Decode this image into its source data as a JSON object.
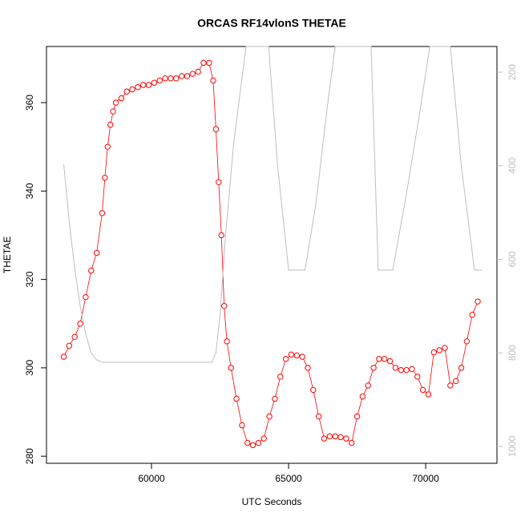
{
  "chart_data": {
    "type": "scatter",
    "title": "ORCAS RF14vlonS THETAE",
    "xlabel": "UTC Seconds",
    "ylabel": "THETAE",
    "xlim": [
      56170,
      72600
    ],
    "xticks": [
      60000,
      65000,
      70000
    ],
    "ylim": [
      278.4,
      372.7
    ],
    "yticks": [
      280,
      300,
      320,
      340,
      360
    ],
    "y2lim": [
      1036,
      145
    ],
    "y2ticks": [
      200,
      400,
      600,
      800,
      1000
    ],
    "series": [
      {
        "color": "#ff0000",
        "x": [
          56800,
          57000,
          57200,
          57400,
          57600,
          57800,
          58000,
          58200,
          58300,
          58400,
          58500,
          58600,
          58700,
          58900,
          59100,
          59300,
          59500,
          59700,
          59900,
          60100,
          60300,
          60500,
          60700,
          60900,
          61100,
          61300,
          61500,
          61700,
          61900,
          62100,
          62250,
          62350,
          62450,
          62550,
          62650,
          62750,
          62900,
          63100,
          63300,
          63500,
          63700,
          63900,
          64100,
          64300,
          64500,
          64700,
          64900,
          65100,
          65300,
          65500,
          65700,
          65900,
          66100,
          66300,
          66500,
          66700,
          66900,
          67100,
          67300,
          67500,
          67700,
          67900,
          68100,
          68300,
          68500,
          68700,
          68900,
          69100,
          69300,
          69500,
          69700,
          69900,
          70100,
          70300,
          70500,
          70700,
          70900,
          71100,
          71300,
          71500,
          71700,
          71900
        ],
        "values": [
          302.5,
          305,
          307,
          310,
          316,
          322,
          326,
          335,
          343,
          350,
          355,
          358,
          360,
          361,
          362.5,
          363,
          363.5,
          364,
          364,
          364.5,
          365,
          365.5,
          365.5,
          365.5,
          366,
          366,
          366.5,
          367,
          369,
          369,
          365,
          354,
          342,
          330,
          314,
          306,
          300,
          293,
          287,
          283,
          282.5,
          283,
          284,
          289,
          293,
          298,
          302,
          303,
          302.8,
          302.5,
          300,
          295,
          289,
          284,
          284.5,
          284.5,
          284.3,
          284,
          283,
          289,
          293.5,
          296,
          300,
          302,
          302,
          301.5,
          300,
          299.5,
          299.5,
          299.7,
          298,
          295,
          294,
          303.5,
          304,
          304.5,
          296,
          297,
          300,
          306,
          312,
          315
        ]
      },
      {
        "color": "#bebebe",
        "axis": "y2",
        "x": [
          56800,
          57000,
          57200,
          57400,
          57600,
          57800,
          58000,
          58200,
          62200,
          62350,
          62500,
          62700,
          63000,
          63450,
          64270,
          64600,
          65000,
          65600,
          66000,
          66400,
          66700,
          68010,
          68270,
          68800,
          69300,
          69800,
          70150,
          70900,
          71300,
          71780,
          72050
        ],
        "values": [
          397,
          520,
          620,
          700,
          760,
          800,
          815,
          820,
          820,
          800,
          720,
          550,
          350,
          145,
          145,
          400,
          623,
          623,
          480,
          280,
          145,
          145,
          623,
          623,
          460,
          280,
          145,
          145,
          400,
          623,
          623
        ]
      }
    ]
  }
}
